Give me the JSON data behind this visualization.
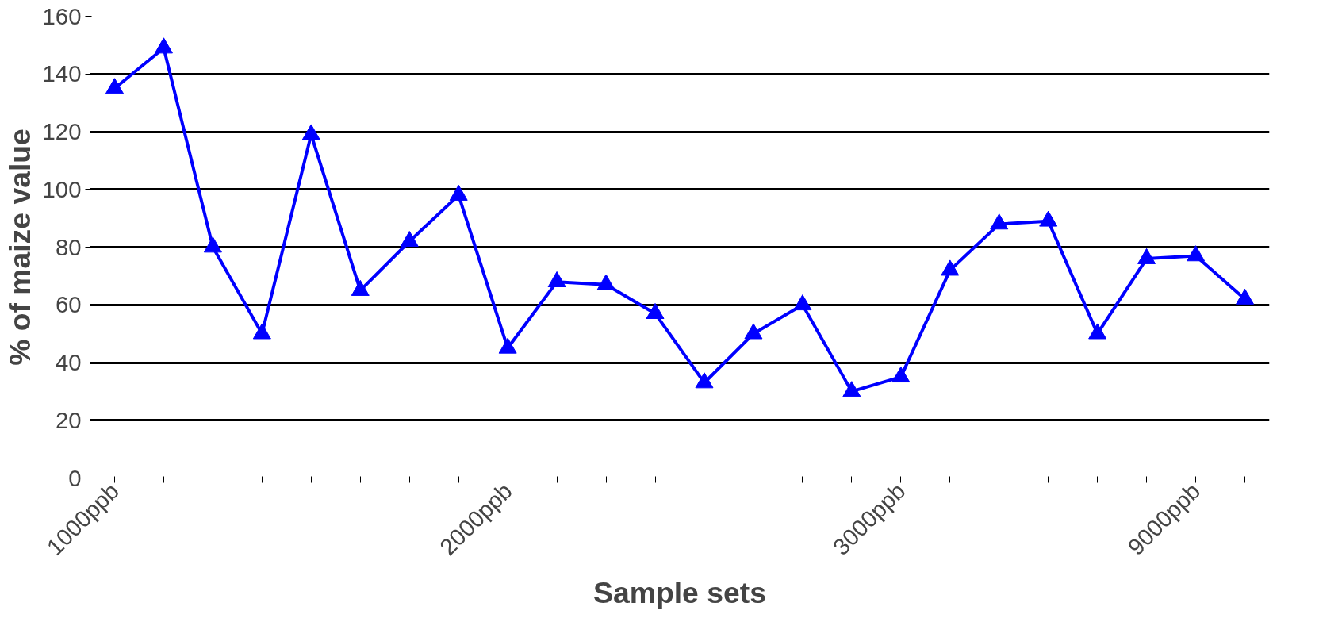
{
  "chart_data": {
    "type": "line",
    "xlabel": "Sample sets",
    "ylabel": "% of maize value",
    "categories": [
      "1000ppb",
      null,
      null,
      null,
      null,
      null,
      null,
      null,
      "2000ppb",
      null,
      null,
      null,
      null,
      null,
      null,
      null,
      "3000ppb",
      null,
      null,
      null,
      null,
      null,
      "9000ppb",
      null
    ],
    "series": [
      {
        "color": "#0000ff",
        "values": [
          135,
          149,
          80,
          50,
          119,
          65,
          82,
          98,
          45,
          68,
          67,
          57,
          33,
          50,
          60,
          30,
          35,
          72,
          88,
          89,
          50,
          76,
          77,
          62
        ]
      }
    ],
    "ylim": [
      0,
      160
    ],
    "yticks": [
      0,
      20,
      40,
      60,
      80,
      100,
      120,
      140,
      160
    ],
    "grid": "y",
    "marker": "triangle",
    "line_style": "solid"
  }
}
